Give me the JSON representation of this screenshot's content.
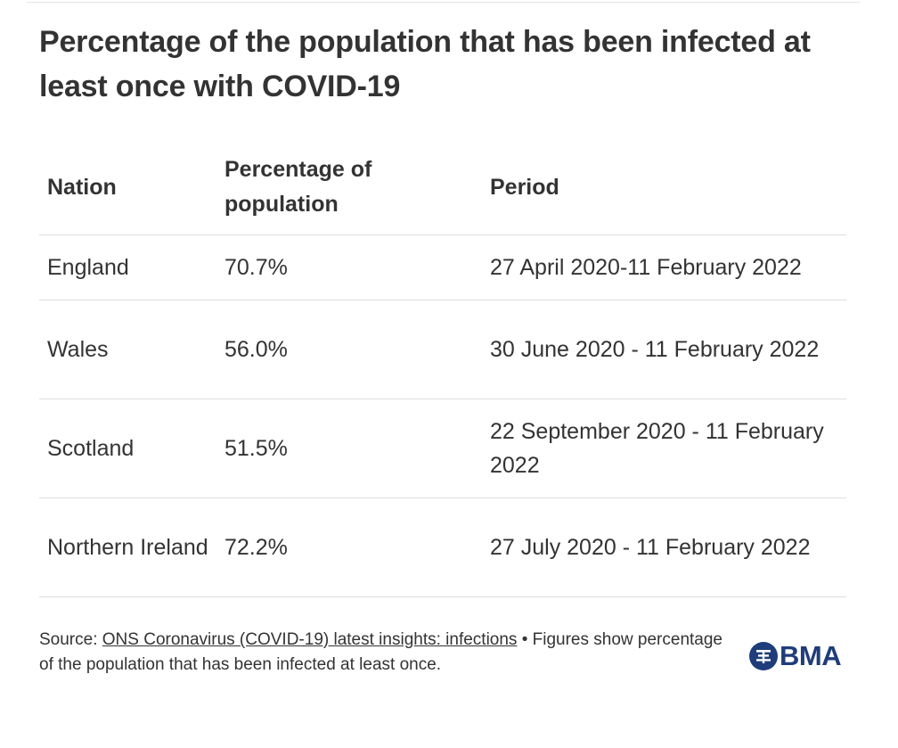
{
  "title": "Percentage of the population that has been infected at least once with COVID-19",
  "chart_data": {
    "type": "table",
    "columns": [
      "Nation",
      "Percentage of population",
      "Period"
    ],
    "rows": [
      {
        "nation": "England",
        "percentage": "70.7%",
        "period": "27 April 2020-11 February 2022"
      },
      {
        "nation": "Wales",
        "percentage": "56.0%",
        "period": "30 June 2020 - 11 February 2022"
      },
      {
        "nation": "Scotland",
        "percentage": "51.5%",
        "period": "22 September 2020 - 11 February 2022"
      },
      {
        "nation": "Northern Ireland",
        "percentage": "72.2%",
        "period": "27 July 2020 - 11 February 2022"
      }
    ]
  },
  "footer": {
    "source_prefix": "Source: ",
    "source_link": "ONS Coronavirus (COVID-19) latest insights: infections",
    "note": " • Figures show percentage of the population that has been infected at least once."
  },
  "logo": {
    "text": "BMA",
    "icon": "bma-emblem-icon",
    "color": "#1f3d7a"
  },
  "colors": {
    "text": "#333333",
    "rule": "#dddddd"
  }
}
